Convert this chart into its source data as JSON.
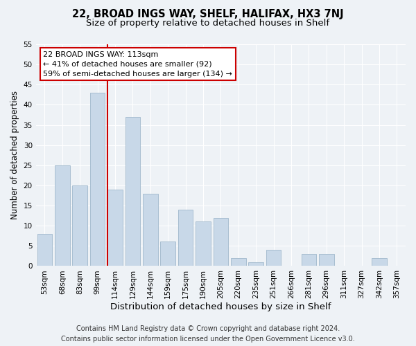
{
  "title": "22, BROAD INGS WAY, SHELF, HALIFAX, HX3 7NJ",
  "subtitle": "Size of property relative to detached houses in Shelf",
  "xlabel": "Distribution of detached houses by size in Shelf",
  "ylabel": "Number of detached properties",
  "categories": [
    "53sqm",
    "68sqm",
    "83sqm",
    "99sqm",
    "114sqm",
    "129sqm",
    "144sqm",
    "159sqm",
    "175sqm",
    "190sqm",
    "205sqm",
    "220sqm",
    "235sqm",
    "251sqm",
    "266sqm",
    "281sqm",
    "296sqm",
    "311sqm",
    "327sqm",
    "342sqm",
    "357sqm"
  ],
  "values": [
    8,
    25,
    20,
    43,
    19,
    37,
    18,
    6,
    14,
    11,
    12,
    2,
    1,
    4,
    0,
    3,
    3,
    0,
    0,
    2,
    0
  ],
  "bar_color": "#c8d8e8",
  "bar_edge_color": "#a0b8cc",
  "vline_x_index": 4,
  "vline_color": "#cc0000",
  "annotation_line1": "22 BROAD INGS WAY: 113sqm",
  "annotation_line2": "← 41% of detached houses are smaller (92)",
  "annotation_line3": "59% of semi-detached houses are larger (134) →",
  "annotation_box_color": "#ffffff",
  "annotation_box_edge": "#cc0000",
  "ylim": [
    0,
    55
  ],
  "yticks": [
    0,
    5,
    10,
    15,
    20,
    25,
    30,
    35,
    40,
    45,
    50,
    55
  ],
  "bg_color": "#eef2f6",
  "plot_bg_color": "#eef2f6",
  "grid_color": "#ffffff",
  "footer_line1": "Contains HM Land Registry data © Crown copyright and database right 2024.",
  "footer_line2": "Contains public sector information licensed under the Open Government Licence v3.0.",
  "title_fontsize": 10.5,
  "subtitle_fontsize": 9.5,
  "xlabel_fontsize": 9.5,
  "ylabel_fontsize": 8.5,
  "tick_fontsize": 7.5,
  "annotation_fontsize": 8.0,
  "footer_fontsize": 7.0
}
